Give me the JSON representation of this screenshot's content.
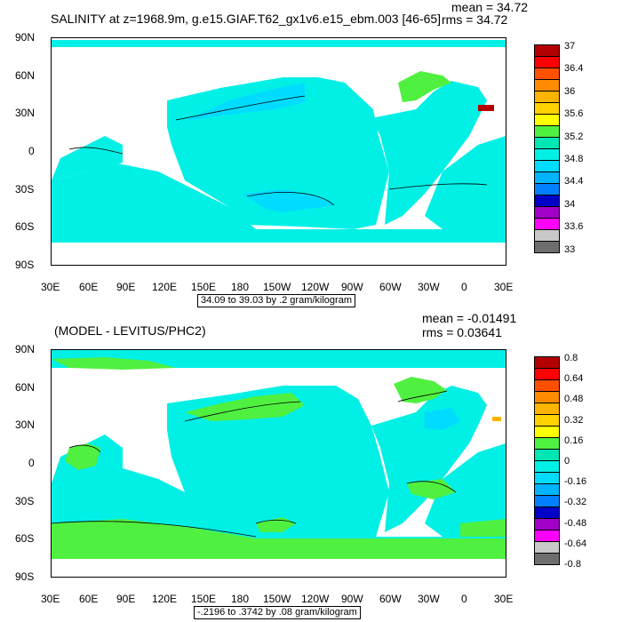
{
  "colors": {
    "ocean_bg": "#00F0E6",
    "land": "#FFFFFF",
    "palette": [
      "#6E6E6E",
      "#C8C8C8",
      "#FF00FF",
      "#A000C8",
      "#0000C8",
      "#0080FF",
      "#00B4FF",
      "#00DCFF",
      "#00F0E6",
      "#00E6B4",
      "#50F040",
      "#FFFF00",
      "#FFD200",
      "#FFB400",
      "#FF8C00",
      "#FF5000",
      "#FF0000",
      "#B40000"
    ]
  },
  "panel1": {
    "title": "SALINITY at z=1968.9m, g.e15.GIAF.T62_gx1v6.e15_ebm.003 [46-65]",
    "mean": "mean = 34.72",
    "rms": "rms = 34.72",
    "range_note": "34.09 to 39.03 by .2 gram/kilogram",
    "lat_labels": [
      "90N",
      "60N",
      "30N",
      "0",
      "30S",
      "60S",
      "90S"
    ],
    "lon_labels": [
      "30E",
      "60E",
      "90E",
      "120E",
      "150E",
      "180",
      "150W",
      "120W",
      "90W",
      "60W",
      "30W",
      "0",
      "30E"
    ],
    "legend_labels": [
      "37",
      "36.4",
      "36",
      "35.6",
      "35.2",
      "34.8",
      "34.4",
      "34",
      "33.6",
      "33"
    ],
    "legend_colors": [
      "#B40000",
      "#FF0000",
      "#FF5000",
      "#FF8C00",
      "#FFB400",
      "#FFD200",
      "#FFFF00",
      "#50F040",
      "#00E6B4",
      "#00F0E6",
      "#00DCFF",
      "#00B4FF",
      "#0080FF",
      "#0000C8",
      "#A000C8",
      "#FF00FF",
      "#C8C8C8",
      "#6E6E6E"
    ]
  },
  "panel2": {
    "title": "(MODEL - LEVITUS/PHC2)",
    "mean": "mean = -0.01491",
    "rms": "rms = 0.03641",
    "range_note": "-.2196 to .3742 by .08 gram/kilogram",
    "lat_labels": [
      "90N",
      "60N",
      "30N",
      "0",
      "30S",
      "60S",
      "90S"
    ],
    "lon_labels": [
      "30E",
      "60E",
      "90E",
      "120E",
      "150E",
      "180",
      "150W",
      "120W",
      "90W",
      "60W",
      "30W",
      "0",
      "30E"
    ],
    "legend_labels": [
      "0.8",
      "0.64",
      "0.48",
      "0.32",
      "0.16",
      "0",
      "-0.16",
      "-0.32",
      "-0.48",
      "-0.64",
      "-0.8"
    ],
    "legend_colors": [
      "#B40000",
      "#FF0000",
      "#FF5000",
      "#FF8C00",
      "#FFB400",
      "#FFD200",
      "#FFFF00",
      "#50F040",
      "#00E6B4",
      "#00F0E6",
      "#00DCFF",
      "#00B4FF",
      "#0080FF",
      "#0000C8",
      "#A000C8",
      "#FF00FF",
      "#C8C8C8",
      "#6E6E6E"
    ]
  }
}
